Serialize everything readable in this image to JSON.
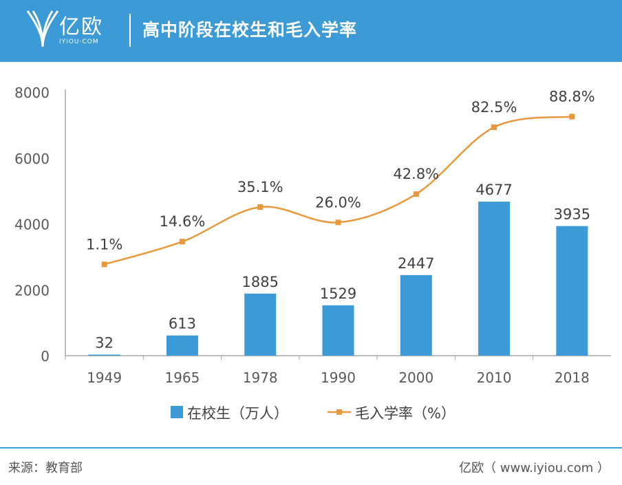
{
  "header": {
    "logo_text": "亿欧",
    "logo_sub": "IYIOU·COM",
    "title": "高中阶段在校生和毛入学率"
  },
  "footer": {
    "source": "来源：教育部",
    "credit": "亿欧（ www.iyiou.com ）"
  },
  "colors": {
    "header_bg": "#3c9ad6",
    "bar": "#3c9ad6",
    "line": "#e8973a"
  },
  "chart_data": {
    "type": "bar",
    "categories": [
      "1949",
      "1965",
      "1978",
      "1990",
      "2000",
      "2010",
      "2018"
    ],
    "series": [
      {
        "name": "在校生（万人）",
        "type": "bar",
        "values": [
          32,
          613,
          1885,
          1529,
          2447,
          4677,
          3935
        ],
        "labels": [
          "32",
          "613",
          "1885",
          "1529",
          "2447",
          "4677",
          "3935"
        ]
      },
      {
        "name": "毛入学率（%）",
        "type": "line",
        "values": [
          1.1,
          14.6,
          35.1,
          26.0,
          42.8,
          82.5,
          88.8
        ],
        "labels": [
          "1.1%",
          "14.6%",
          "35.1%",
          "26.0%",
          "42.8%",
          "82.5%",
          "88.8%"
        ]
      }
    ],
    "y_ticks": [
      "0",
      "2000",
      "4000",
      "6000",
      "8000"
    ],
    "ylim": [
      0,
      8000
    ],
    "grid": false,
    "legend_position": "bottom"
  }
}
